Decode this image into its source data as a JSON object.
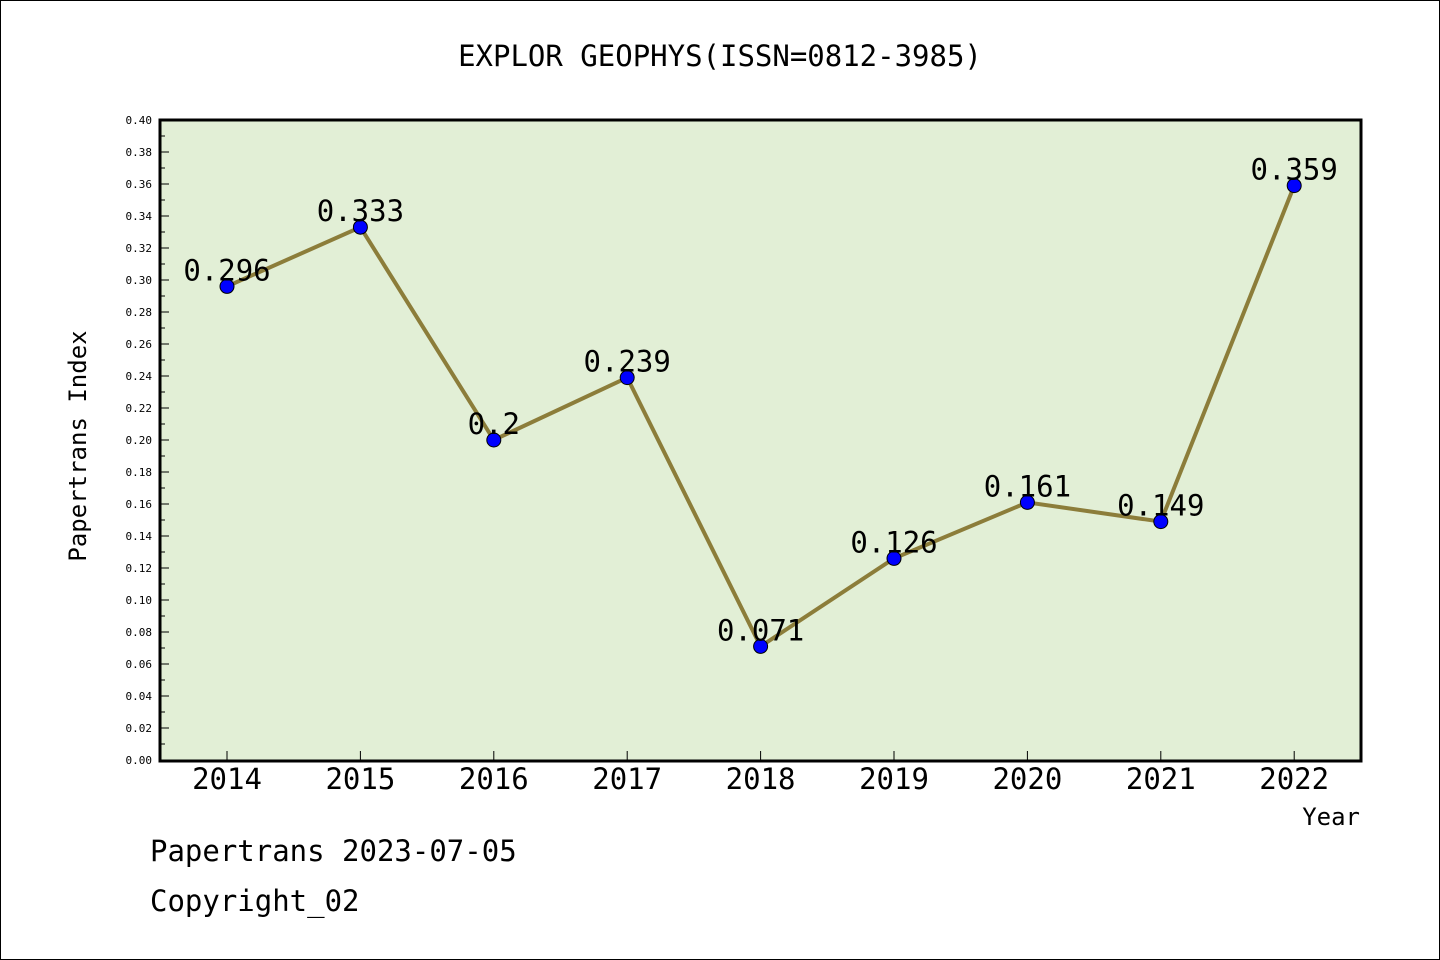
{
  "chart_data": {
    "type": "line",
    "title": "EXPLOR GEOPHYS(ISSN=0812-3985)",
    "xlabel": "Year",
    "ylabel": "Papertrans Index",
    "categories": [
      "2014",
      "2015",
      "2016",
      "2017",
      "2018",
      "2019",
      "2020",
      "2021",
      "2022"
    ],
    "values": [
      0.296,
      0.333,
      0.2,
      0.239,
      0.071,
      0.126,
      0.161,
      0.149,
      0.359
    ],
    "data_labels": [
      "0.296",
      "0.333",
      "0.2",
      "0.239",
      "0.071",
      "0.126",
      "0.161",
      "0.149",
      "0.359"
    ],
    "ylim": [
      0,
      0.4
    ],
    "y_ticks": [
      "0.00",
      "0.02",
      "0.04",
      "0.06",
      "0.08",
      "0.10",
      "0.12",
      "0.14",
      "0.16",
      "0.18",
      "0.20",
      "0.22",
      "0.24",
      "0.26",
      "0.28",
      "0.30",
      "0.32",
      "0.34",
      "0.36",
      "0.38",
      "0.40"
    ],
    "grid": false,
    "legend": "none",
    "colors": {
      "plot_background": "#e2efd6",
      "line": "#8c7d3a",
      "marker": "#0000ff"
    }
  },
  "footer": {
    "line1": "Papertrans 2023-07-05",
    "line2": "Copyright_02"
  }
}
